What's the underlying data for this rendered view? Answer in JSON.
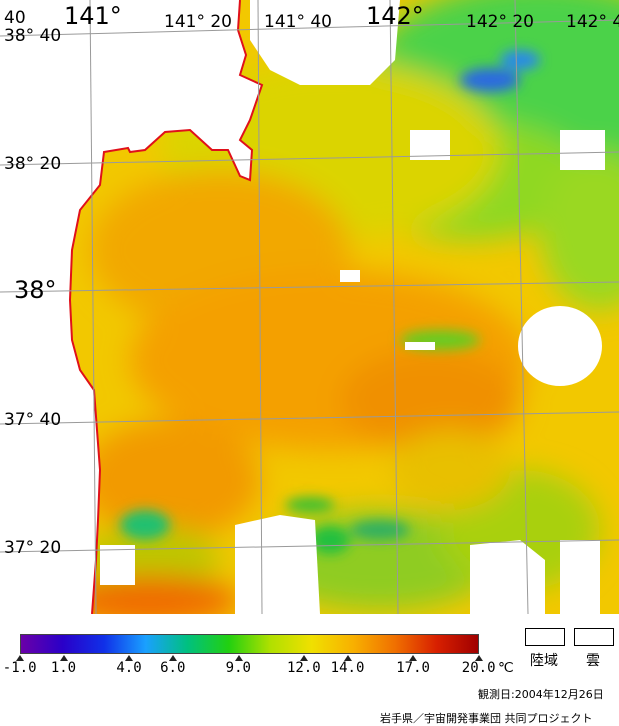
{
  "map": {
    "coastline_color": "#e0101a",
    "grid_color": "#9a9a9a",
    "land_color": "#ffffff",
    "cloud_color": "#ffffff"
  },
  "longitude_labels": [
    "40",
    "141°",
    "141° 20",
    "141° 40",
    "142°",
    "142° 20",
    "142° 4"
  ],
  "latitude_labels": [
    "38° 40",
    "38° 20",
    "38°",
    "37° 40",
    "37° 20"
  ],
  "colorbar": {
    "tick_labels": [
      "-1.0",
      "1.0",
      "4.0",
      "6.0",
      "9.0",
      "12.0",
      "14.0",
      "17.0",
      "20.0"
    ],
    "unit": "℃",
    "stops": [
      "#6a00a8",
      "#2a00c8",
      "#1030e8",
      "#1aa0ff",
      "#00c080",
      "#22d010",
      "#b0e000",
      "#f0e000",
      "#f8b000",
      "#f07000",
      "#d82000",
      "#a00000"
    ]
  },
  "legend": {
    "land_label": "陸域",
    "cloud_label": "雲"
  },
  "footer": {
    "date_line": "観測日:2004年12月26日",
    "credit_line": "岩手県／宇宙開発事業団 共同プロジェクト"
  }
}
